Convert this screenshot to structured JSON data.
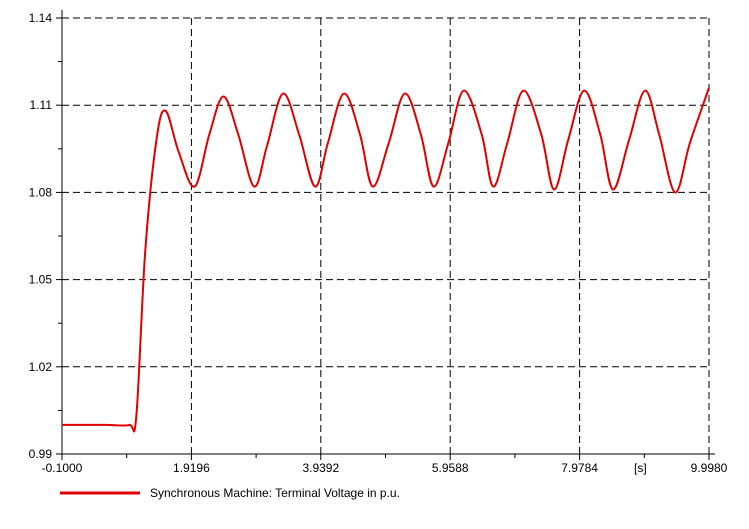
{
  "chart_data": {
    "type": "line",
    "title": "",
    "xlabel": "",
    "ylabel": "",
    "x_unit_label": "[s]",
    "xlim": [
      -0.1,
      9.998
    ],
    "ylim": [
      0.99,
      1.14
    ],
    "x_tick_labels": [
      "-0.1000",
      "1.9196",
      "3.9392",
      "5.9588",
      "7.9784",
      "9.9980"
    ],
    "x_tick_values": [
      -0.1,
      1.9196,
      3.9392,
      5.9588,
      7.9784,
      9.998
    ],
    "y_tick_labels": [
      "0.99",
      "1.02",
      "1.05",
      "1.08",
      "1.11",
      "1.14"
    ],
    "y_tick_values": [
      0.99,
      1.02,
      1.05,
      1.08,
      1.11,
      1.14
    ],
    "grid": true,
    "legend_position": "bottom-left",
    "series": [
      {
        "name": "Synchronous Machine: Terminal Voltage in p.u.",
        "color": "#e00000",
        "x": [
          -0.1,
          0.2,
          0.6,
          0.95,
          1.06,
          1.2,
          1.38,
          1.52,
          1.72,
          1.97,
          2.2,
          2.42,
          2.65,
          2.9,
          3.1,
          3.35,
          3.6,
          3.85,
          4.05,
          4.3,
          4.55,
          4.75,
          5.0,
          5.25,
          5.5,
          5.7,
          5.93,
          6.17,
          6.45,
          6.63,
          6.85,
          7.1,
          7.38,
          7.58,
          7.8,
          8.05,
          8.3,
          8.5,
          8.75,
          9.0,
          9.22,
          9.47,
          9.7,
          9.998
        ],
        "y": [
          1.0,
          1.0,
          1.0,
          1.0,
          1.003,
          1.06,
          1.099,
          1.108,
          1.094,
          1.082,
          1.1,
          1.113,
          1.1,
          1.082,
          1.096,
          1.114,
          1.1,
          1.082,
          1.097,
          1.114,
          1.1,
          1.082,
          1.097,
          1.114,
          1.1,
          1.082,
          1.097,
          1.115,
          1.1,
          1.082,
          1.097,
          1.115,
          1.1,
          1.081,
          1.098,
          1.115,
          1.1,
          1.081,
          1.098,
          1.115,
          1.1,
          1.08,
          1.097,
          1.116
        ]
      }
    ]
  }
}
